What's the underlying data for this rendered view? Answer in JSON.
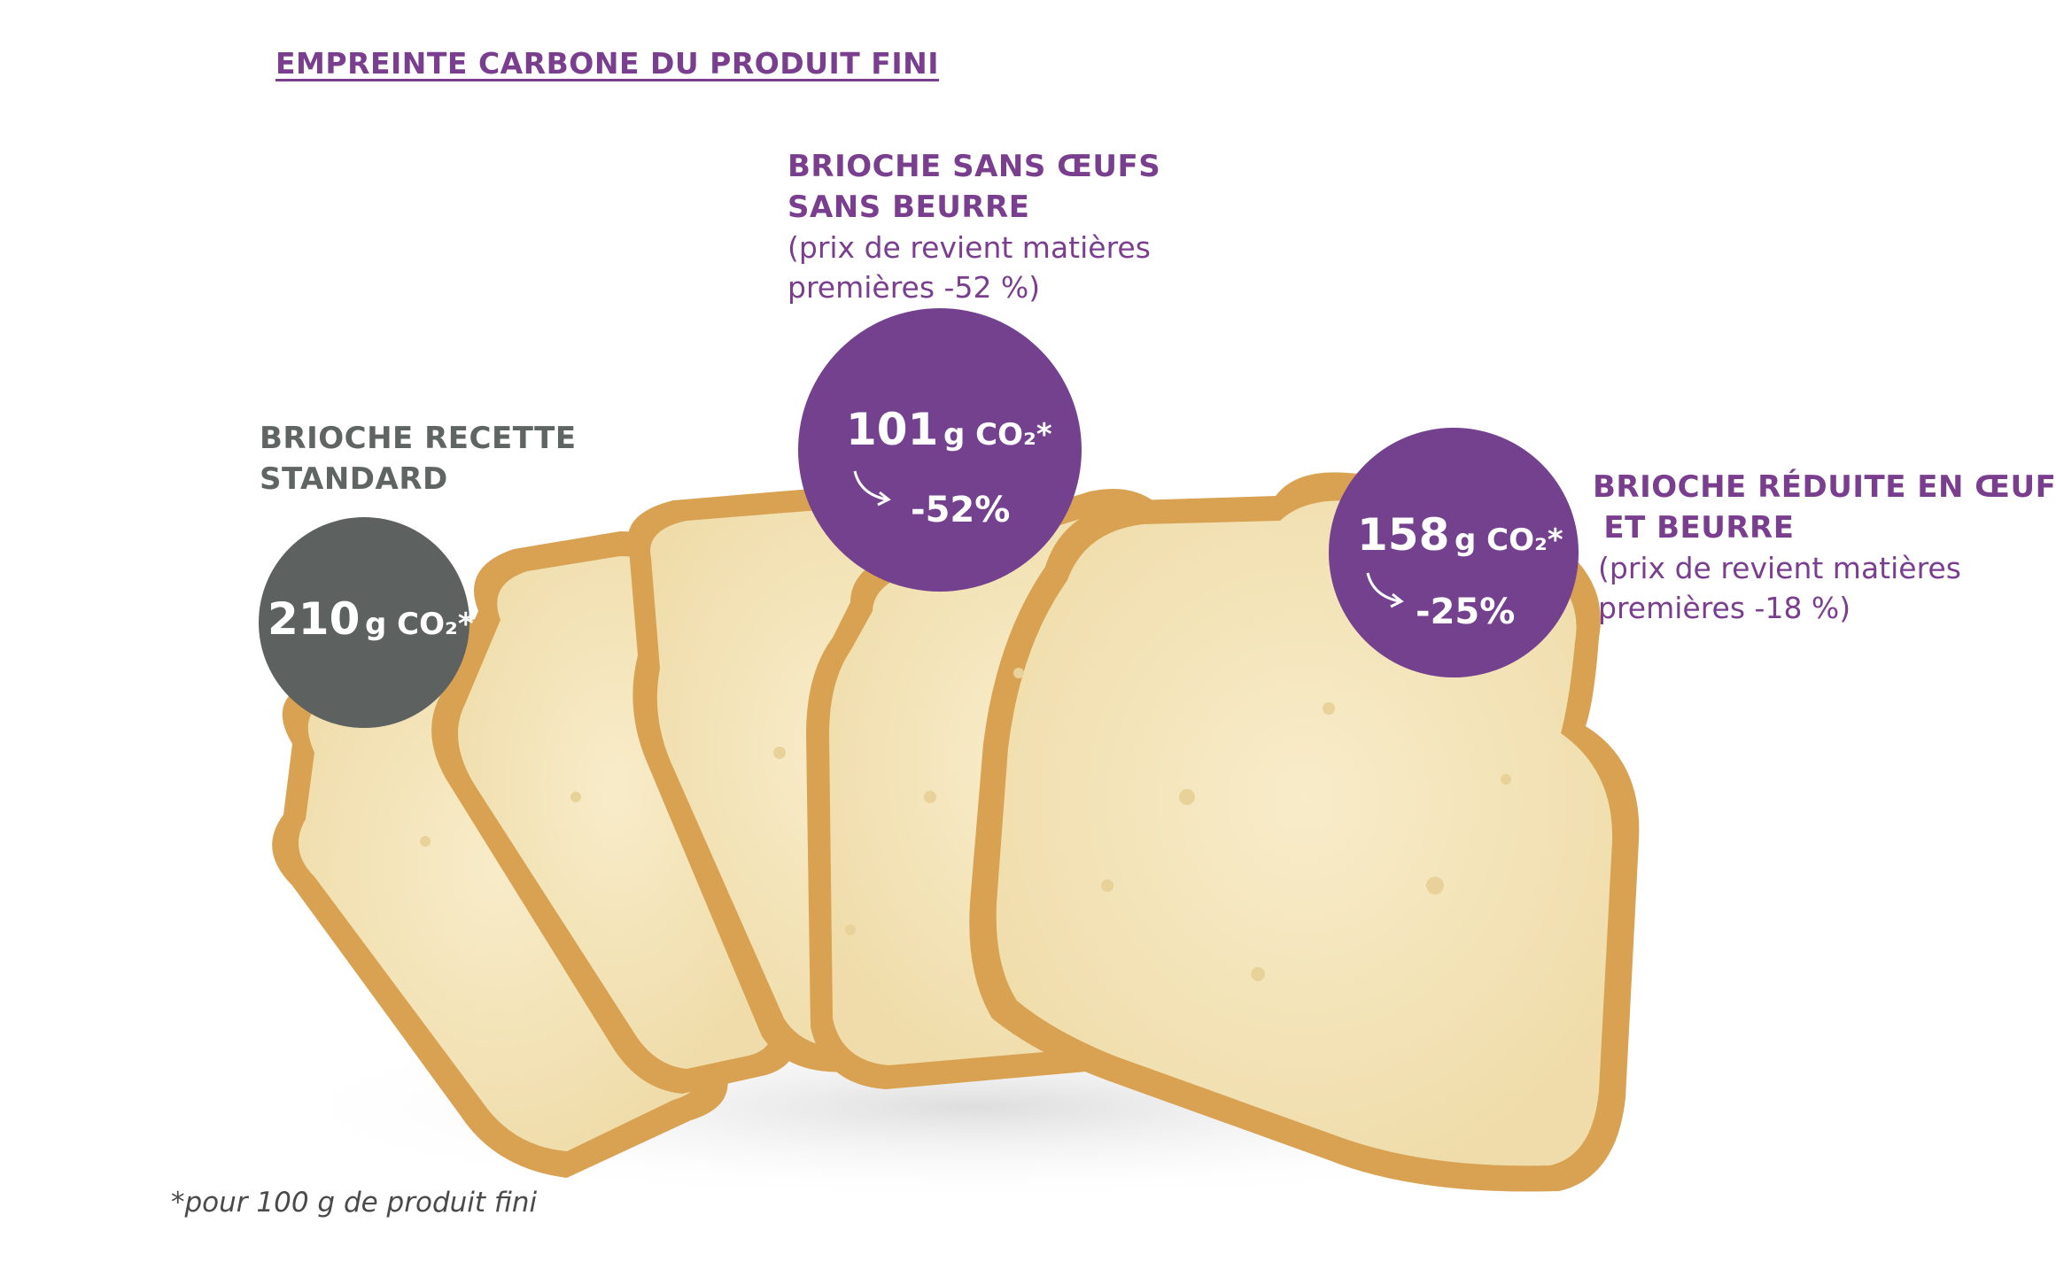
{
  "title": "EMPREINTE CARBONE DU PRODUIT FINI",
  "items": [
    {
      "heading": [
        "BRIOCHE RECETTE",
        "STANDARD"
      ],
      "value": "210",
      "unit": "g CO₂*",
      "color": "#5d6260"
    },
    {
      "heading": [
        "BRIOCHE SANS ŒUFS",
        "SANS BEURRE"
      ],
      "note": [
        "(prix de revient matières",
        "premières -52 %)"
      ],
      "value": "101",
      "unit": "g CO₂*",
      "reduction": "-52%",
      "color": "#74418f"
    },
    {
      "heading": [
        "BRIOCHE RÉDUITE EN ŒUFS",
        " ET BEURRE"
      ],
      "note": [
        "(prix de revient matières",
        "premières -18 %)"
      ],
      "value": "158",
      "unit": "g CO₂*",
      "reduction": "-25%",
      "color": "#74418f"
    }
  ],
  "footnote": "*pour 100 g de produit fini",
  "colors": {
    "purple": "#7a3e8f",
    "grey": "#5f6563",
    "crust": "#d9a253",
    "crumb": "#f5e6bf"
  }
}
